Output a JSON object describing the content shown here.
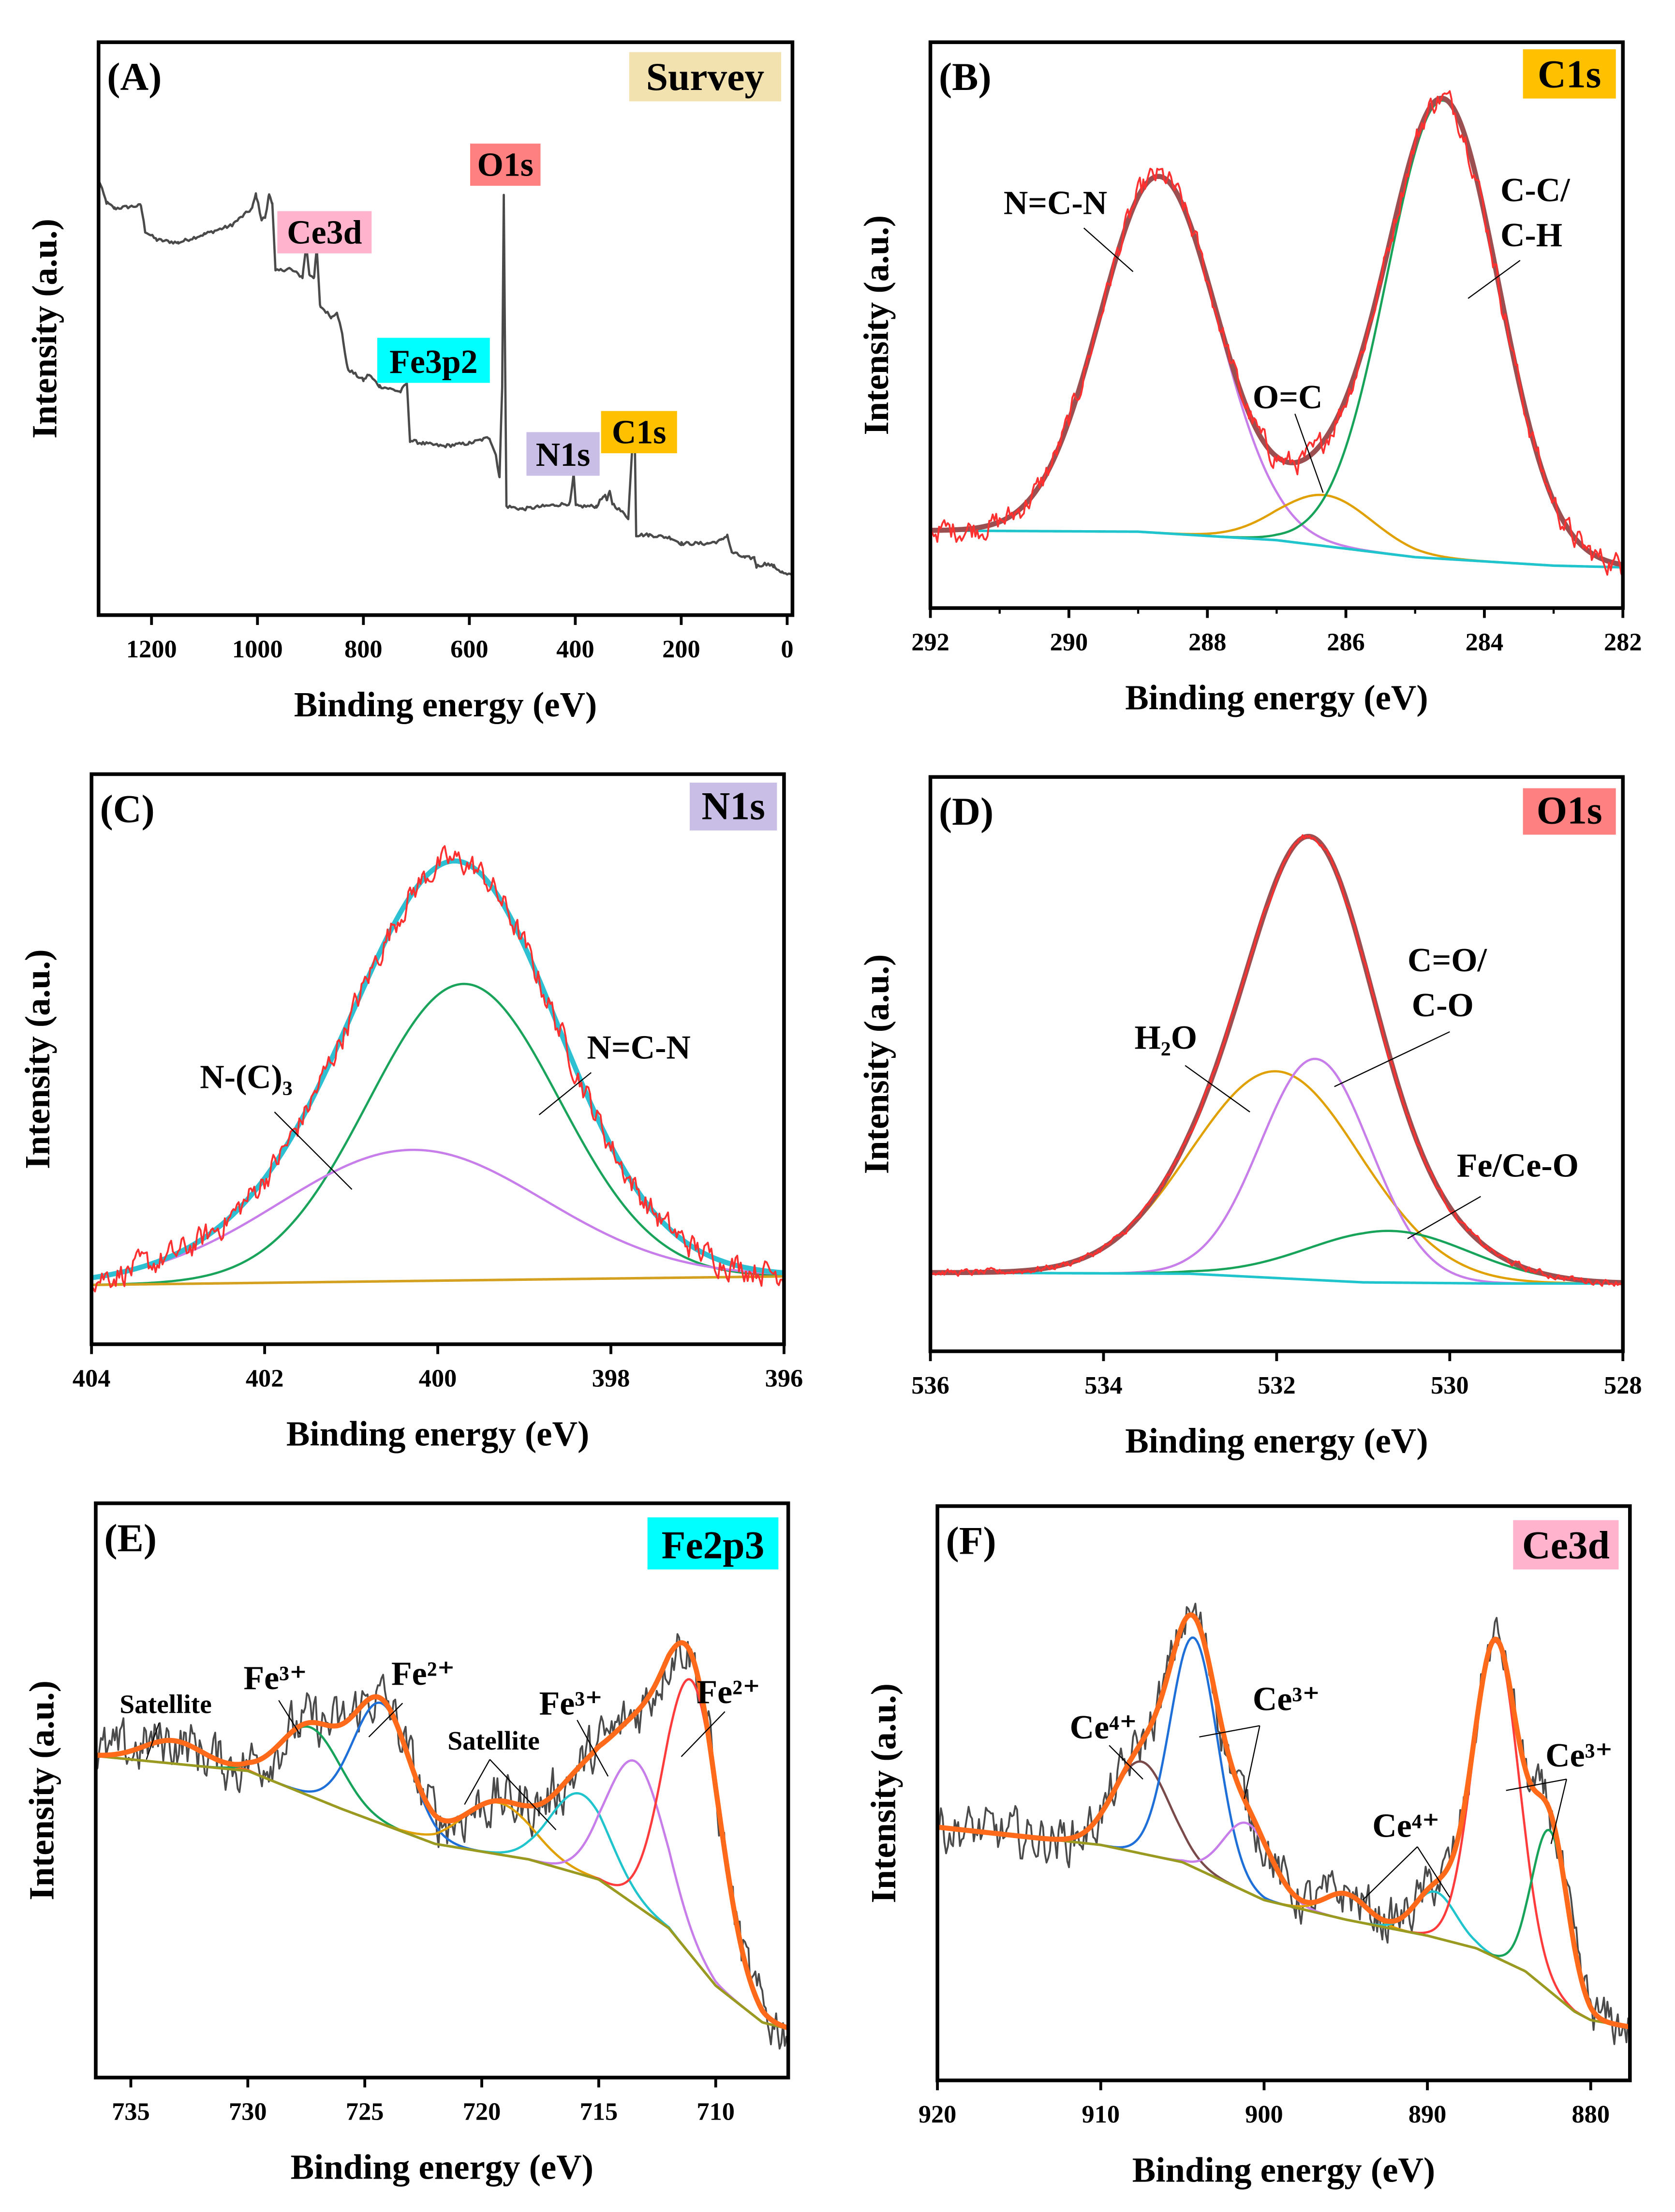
{
  "chart_data": [
    {
      "panel": "(A)",
      "tag": "Survey",
      "tag_color": "#f2e2b0",
      "type": "line",
      "xlabel": "Binding energy (eV)",
      "ylabel": "Intensity (a.u.)",
      "xlim": [
        1300,
        -10
      ],
      "ylim": [
        0,
        1
      ],
      "xticks": [
        1200,
        1000,
        800,
        600,
        400,
        200,
        0
      ],
      "trace_color": "#4a4a4a",
      "trace": [
        [
          1300,
          0.76
        ],
        [
          1285,
          0.72
        ],
        [
          1270,
          0.71
        ],
        [
          1220,
          0.715
        ],
        [
          1212,
          0.67
        ],
        [
          1190,
          0.655
        ],
        [
          1150,
          0.65
        ],
        [
          1100,
          0.665
        ],
        [
          1050,
          0.68
        ],
        [
          1010,
          0.71
        ],
        [
          1003,
          0.735
        ],
        [
          992,
          0.69
        ],
        [
          985,
          0.695
        ],
        [
          978,
          0.735
        ],
        [
          972,
          0.72
        ],
        [
          966,
          0.6
        ],
        [
          940,
          0.605
        ],
        [
          915,
          0.59
        ],
        [
          908,
          0.645
        ],
        [
          902,
          0.595
        ],
        [
          893,
          0.59
        ],
        [
          888,
          0.64
        ],
        [
          882,
          0.54
        ],
        [
          860,
          0.52
        ],
        [
          850,
          0.53
        ],
        [
          840,
          0.49
        ],
        [
          830,
          0.43
        ],
        [
          800,
          0.41
        ],
        [
          790,
          0.42
        ],
        [
          770,
          0.4
        ],
        [
          730,
          0.39
        ],
        [
          718,
          0.405
        ],
        [
          712,
          0.305
        ],
        [
          690,
          0.3
        ],
        [
          650,
          0.295
        ],
        [
          600,
          0.3
        ],
        [
          562,
          0.31
        ],
        [
          550,
          0.28
        ],
        [
          543,
          0.24
        ],
        [
          538,
          0.4
        ],
        [
          535,
          0.735
        ],
        [
          533,
          0.5
        ],
        [
          530,
          0.19
        ],
        [
          500,
          0.185
        ],
        [
          460,
          0.19
        ],
        [
          410,
          0.195
        ],
        [
          403,
          0.245
        ],
        [
          399,
          0.19
        ],
        [
          360,
          0.19
        ],
        [
          345,
          0.21
        ],
        [
          340,
          0.2
        ],
        [
          335,
          0.215
        ],
        [
          330,
          0.195
        ],
        [
          300,
          0.17
        ],
        [
          292,
          0.3
        ],
        [
          288,
          0.33
        ],
        [
          285,
          0.14
        ],
        [
          260,
          0.14
        ],
        [
          220,
          0.135
        ],
        [
          200,
          0.125
        ],
        [
          150,
          0.125
        ],
        [
          125,
          0.13
        ],
        [
          113,
          0.14
        ],
        [
          105,
          0.11
        ],
        [
          80,
          0.1
        ],
        [
          62,
          0.1
        ],
        [
          58,
          0.085
        ],
        [
          40,
          0.09
        ],
        [
          25,
          0.085
        ],
        [
          10,
          0.075
        ],
        [
          0,
          0.07
        ],
        [
          -10,
          0.07
        ]
      ],
      "annotations": [
        {
          "text": "O1s",
          "color": "#ff8080"
        },
        {
          "text": "Ce3d",
          "color": "#ffb3cc"
        },
        {
          "text": "Fe3p2",
          "color": "#00ffff"
        },
        {
          "text": "N1s",
          "color": "#c9bfe6"
        },
        {
          "text": "C1s",
          "color": "#ffc000"
        }
      ]
    },
    {
      "panel": "(B)",
      "tag": "C1s",
      "tag_color": "#ffc000",
      "type": "line",
      "xlabel": "Binding energy (eV)",
      "ylabel": "Intensity (a.u.)",
      "xlim": [
        292,
        282
      ],
      "ylim": [
        0,
        1
      ],
      "xticks": [
        292,
        290,
        288,
        286,
        284,
        282
      ],
      "raw_color": "#ff3030",
      "envelope_color": "#9b4f50",
      "background": {
        "color": "#20c4cc",
        "points": [
          [
            292,
            0.137
          ],
          [
            289,
            0.135
          ],
          [
            287,
            0.12
          ],
          [
            285,
            0.09
          ],
          [
            283,
            0.075
          ],
          [
            282,
            0.072
          ]
        ]
      },
      "components": [
        {
          "center": 288.7,
          "fwhm": 2.0,
          "height": 0.63,
          "color": "#c77dea"
        },
        {
          "center": 286.3,
          "fwhm": 1.6,
          "height": 0.09,
          "color": "#e0a000"
        },
        {
          "center": 284.6,
          "fwhm": 1.9,
          "height": 0.81,
          "color": "#18a35a"
        }
      ],
      "annotations": [
        {
          "text": "N=C-N"
        },
        {
          "text": "O=C"
        },
        {
          "text": "C-C/"
        },
        {
          "text": "C-H"
        }
      ]
    },
    {
      "panel": "(C)",
      "tag": "N1s",
      "tag_color": "#c9bfe6",
      "type": "line",
      "xlabel": "Binding energy (eV)",
      "ylabel": "Intensity (a.u.)",
      "xlim": [
        404,
        396
      ],
      "ylim": [
        0,
        1
      ],
      "xticks": [
        404,
        402,
        400,
        398,
        396
      ],
      "raw_color": "#ff3030",
      "envelope_color": "#2cc0d2",
      "background": {
        "color": "#d4a020",
        "points": [
          [
            404,
            0.104
          ],
          [
            396,
            0.119
          ]
        ]
      },
      "components": [
        {
          "center": 399.7,
          "fwhm": 2.6,
          "height": 0.52,
          "color": "#1aa35a"
        },
        {
          "center": 400.3,
          "fwhm": 3.6,
          "height": 0.23,
          "color": "#c77dea"
        }
      ],
      "annotations": [
        {
          "text": "N-(C)₃"
        },
        {
          "text": "N=C-N"
        }
      ]
    },
    {
      "panel": "(D)",
      "tag": "O1s",
      "tag_color": "#ff8080",
      "type": "line",
      "xlabel": "Binding energy (eV)",
      "ylabel": "Intensity (a.u.)",
      "xlim": [
        536,
        528
      ],
      "ylim": [
        0,
        1
      ],
      "xticks": [
        536,
        534,
        532,
        530,
        528
      ],
      "raw_color": "#ff3030",
      "envelope_color": "#9b4f50",
      "background": {
        "color": "#20c4cc",
        "points": [
          [
            536,
            0.137
          ],
          [
            533,
            0.135
          ],
          [
            531,
            0.12
          ],
          [
            529.5,
            0.118
          ],
          [
            528,
            0.118
          ]
        ]
      },
      "components": [
        {
          "center": 532.0,
          "fwhm": 2.3,
          "height": 0.36,
          "color": "#e0a000"
        },
        {
          "center": 531.55,
          "fwhm": 1.5,
          "height": 0.385,
          "color": "#c77dea"
        },
        {
          "center": 530.7,
          "fwhm": 2.2,
          "height": 0.09,
          "color": "#18a35a"
        }
      ],
      "annotations": [
        {
          "text": "H₂O"
        },
        {
          "text": "C=O/"
        },
        {
          "text": "C-O"
        },
        {
          "text": "Fe/Ce-O"
        }
      ]
    },
    {
      "panel": "(E)",
      "tag": "Fe2p3",
      "tag_color": "#00ffff",
      "type": "line",
      "xlabel": "Binding energy (eV)",
      "ylabel": "Intensity (a.u.)",
      "xlim": [
        736.5,
        706.9
      ],
      "ylim": [
        0,
        1
      ],
      "xticks": [
        735,
        730,
        725,
        720,
        715,
        710
      ],
      "raw_color": "#4a4a4a",
      "envelope_color": "#ff6a1a",
      "background": {
        "color": "#9a9a20",
        "points": [
          [
            736.5,
            0.56
          ],
          [
            730,
            0.534
          ],
          [
            726,
            0.468
          ],
          [
            722,
            0.407
          ],
          [
            718,
            0.38
          ],
          [
            715,
            0.345
          ],
          [
            712,
            0.26
          ],
          [
            710,
            0.16
          ],
          [
            708,
            0.096
          ],
          [
            706.9,
            0.085
          ]
        ]
      },
      "components": [
        {
          "center": 733.2,
          "fwhm": 3.0,
          "height": 0.04,
          "color": "#ff6a1a"
        },
        {
          "center": 727.3,
          "fwhm": 3.0,
          "height": 0.12,
          "color": "#18a35a"
        },
        {
          "center": 724.3,
          "fwhm": 2.8,
          "height": 0.21,
          "color": "#1f6fd8"
        },
        {
          "center": 719.3,
          "fwhm": 3.5,
          "height": 0.09,
          "color": "#e0a000"
        },
        {
          "center": 715.8,
          "fwhm": 3.0,
          "height": 0.14,
          "color": "#20c4cc"
        },
        {
          "center": 713.4,
          "fwhm": 3.0,
          "height": 0.25,
          "color": "#c77dea"
        },
        {
          "center": 711.0,
          "fwhm": 2.8,
          "height": 0.48,
          "color": "#ff3b3b"
        }
      ],
      "annotations": [
        {
          "text": "Satellite"
        },
        {
          "text": "Fe³⁺"
        },
        {
          "text": "Fe²⁺"
        },
        {
          "text": "Satellite"
        },
        {
          "text": "Fe³⁺"
        },
        {
          "text": "Fe²⁺"
        }
      ]
    },
    {
      "panel": "(F)",
      "tag": "Ce3d",
      "tag_color": "#ffb3cc",
      "type": "line",
      "xlabel": "Binding energy (eV)",
      "ylabel": "Intensity (a.u.)",
      "xlim": [
        920,
        877.6
      ],
      "ylim": [
        0,
        1
      ],
      "xticks": [
        920,
        910,
        900,
        890,
        880
      ],
      "raw_color": "#4a4a4a",
      "envelope_color": "#ff6a1a",
      "background": {
        "color": "#9a9a20",
        "points": [
          [
            920,
            0.441
          ],
          [
            910,
            0.41
          ],
          [
            905,
            0.38
          ],
          [
            900,
            0.314
          ],
          [
            895,
            0.28
          ],
          [
            890,
            0.252
          ],
          [
            887,
            0.23
          ],
          [
            884,
            0.19
          ],
          [
            881,
            0.12
          ],
          [
            880,
            0.105
          ],
          [
            877.6,
            0.093
          ]
        ]
      },
      "components": [
        {
          "center": 907.5,
          "fwhm": 4.0,
          "height": 0.16,
          "color": "#7a4a4a"
        },
        {
          "center": 904.3,
          "fwhm": 3.4,
          "height": 0.4,
          "color": "#1f6fd8"
        },
        {
          "center": 901.0,
          "fwhm": 3.5,
          "height": 0.12,
          "color": "#c77dea"
        },
        {
          "center": 895.0,
          "fwhm": 3.0,
          "height": 0.045,
          "color": "#e0a000"
        },
        {
          "center": 889.5,
          "fwhm": 3.0,
          "height": 0.08,
          "color": "#20c4cc"
        },
        {
          "center": 885.8,
          "fwhm": 3.3,
          "height": 0.55,
          "color": "#ff3b3b"
        },
        {
          "center": 882.5,
          "fwhm": 2.6,
          "height": 0.28,
          "color": "#18a35a"
        }
      ],
      "annotations": [
        {
          "text": "Ce⁴⁺"
        },
        {
          "text": "Ce³⁺"
        },
        {
          "text": "Ce⁴⁺"
        },
        {
          "text": "Ce³⁺"
        }
      ]
    }
  ]
}
